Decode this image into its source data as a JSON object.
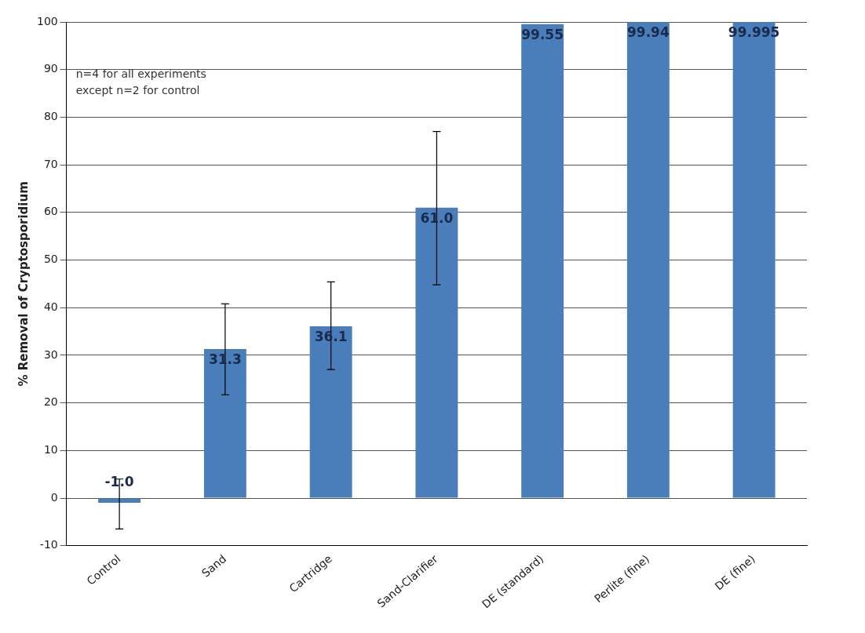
{
  "chart_data": {
    "type": "bar",
    "ylabel": "% Removal of Cryptosporidium",
    "categories": [
      "Control",
      "Sand",
      "Cartridge",
      "Sand-Clarifier",
      "DE (standard)",
      "Perlite (fine)",
      "DE (fine)"
    ],
    "values": [
      -1.0,
      31.3,
      36.1,
      61.0,
      99.55,
      99.94,
      99.995
    ],
    "value_labels": [
      "-1.0",
      "31.3",
      "36.1",
      "61.0",
      "99.55",
      "99.94",
      "99.995"
    ],
    "errors": [
      [
        -6.5,
        4
      ],
      [
        21.7,
        40.8
      ],
      [
        27,
        45.4
      ],
      [
        44.8,
        77
      ],
      null,
      null,
      null
    ],
    "color": "#4a7ebb",
    "ylim": [
      -10,
      100
    ],
    "yticks": [
      -10,
      0,
      10,
      20,
      30,
      40,
      50,
      60,
      70,
      80,
      90,
      100
    ],
    "grid": "y",
    "annotations": [
      "n=4 for all experiments\nexcept n=2 for control"
    ]
  }
}
